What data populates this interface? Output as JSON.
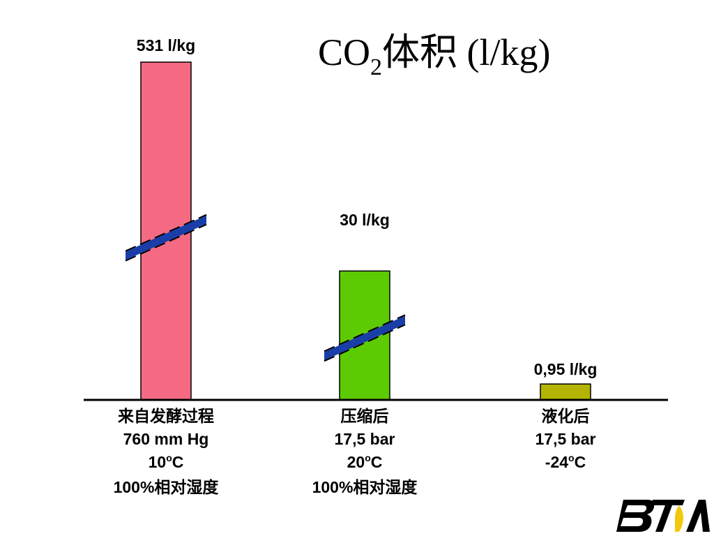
{
  "chart_data": {
    "type": "bar",
    "title": {
      "prefix": "CO",
      "subscript": "2",
      "suffix": "体积 (l/kg)"
    },
    "categories": [
      {
        "lines": [
          {
            "text": "来自发酵过程"
          },
          {
            "text": "760 mm Hg"
          },
          {
            "text": "10",
            "sup": "o",
            "after": "C"
          },
          {
            "text": "100%相对湿度"
          }
        ]
      },
      {
        "lines": [
          {
            "text": "压缩后"
          },
          {
            "text": "17,5 bar"
          },
          {
            "text": "20",
            "sup": "o",
            "after": "C"
          },
          {
            "text": "100%相对湿度"
          }
        ]
      },
      {
        "lines": [
          {
            "text": "液化后"
          },
          {
            "text": "17,5 bar"
          },
          {
            "text": "-24",
            "sup": "o",
            "after": "C"
          }
        ]
      }
    ],
    "values": [
      531,
      30,
      0.95
    ],
    "value_labels": [
      "531 l/kg",
      "30 l/kg",
      "0,95 l/kg"
    ],
    "colors": [
      "#f46a82",
      "#5dcb04",
      "#b4b404"
    ],
    "axis_break": [
      true,
      true,
      false
    ],
    "break_color": "#1a3ea8",
    "grid": false,
    "legend": "none"
  },
  "logo": {
    "name": "BTA"
  }
}
